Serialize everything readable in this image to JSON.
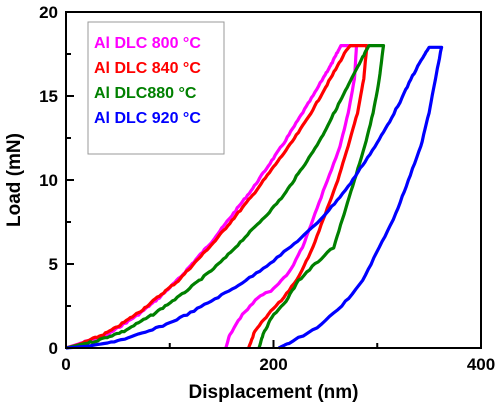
{
  "chart_data": {
    "type": "line",
    "xlabel": "Displacement (nm)",
    "ylabel": "Load (mN)",
    "xlim": [
      0,
      400
    ],
    "ylim": [
      0,
      20
    ],
    "x_ticks": [
      0,
      200,
      400
    ],
    "y_ticks": [
      0,
      5,
      10,
      15,
      20
    ],
    "grid": false,
    "legend_position": "top-left",
    "series": [
      {
        "name": "Al DLC 800 °C",
        "color": "#ff00ff",
        "points": [
          [
            0,
            0
          ],
          [
            10,
            0.2
          ],
          [
            20,
            0.4
          ],
          [
            30,
            0.6
          ],
          [
            40,
            0.8
          ],
          [
            50,
            1.2
          ],
          [
            60,
            1.6
          ],
          [
            70,
            2.0
          ],
          [
            80,
            2.5
          ],
          [
            90,
            3.0
          ],
          [
            100,
            3.6
          ],
          [
            110,
            4.2
          ],
          [
            120,
            4.9
          ],
          [
            130,
            5.6
          ],
          [
            140,
            6.3
          ],
          [
            150,
            7.1
          ],
          [
            160,
            7.9
          ],
          [
            170,
            8.7
          ],
          [
            180,
            9.5
          ],
          [
            190,
            10.4
          ],
          [
            200,
            11.3
          ],
          [
            210,
            12.2
          ],
          [
            220,
            13.2
          ],
          [
            230,
            14.2
          ],
          [
            240,
            15.2
          ],
          [
            250,
            16.3
          ],
          [
            255,
            16.8
          ],
          [
            260,
            17.4
          ],
          [
            265,
            18.0
          ],
          [
            280,
            18.0
          ],
          [
            278,
            16.0
          ],
          [
            272,
            14.0
          ],
          [
            264,
            12.0
          ],
          [
            252,
            10.0
          ],
          [
            240,
            8.0
          ],
          [
            228,
            6.0
          ],
          [
            215,
            4.5
          ],
          [
            200,
            3.5
          ],
          [
            185,
            3.0
          ],
          [
            170,
            2.0
          ],
          [
            158,
            0.8
          ],
          [
            154,
            0
          ]
        ]
      },
      {
        "name": "Al DLC 840 °C",
        "color": "#ff0000",
        "points": [
          [
            0,
            0
          ],
          [
            12,
            0.2
          ],
          [
            24,
            0.5
          ],
          [
            36,
            0.8
          ],
          [
            48,
            1.2
          ],
          [
            60,
            1.7
          ],
          [
            72,
            2.2
          ],
          [
            84,
            2.8
          ],
          [
            96,
            3.4
          ],
          [
            108,
            4.0
          ],
          [
            120,
            4.8
          ],
          [
            132,
            5.6
          ],
          [
            144,
            6.4
          ],
          [
            156,
            7.3
          ],
          [
            168,
            8.2
          ],
          [
            180,
            9.1
          ],
          [
            192,
            10.1
          ],
          [
            204,
            11.1
          ],
          [
            216,
            12.1
          ],
          [
            228,
            13.2
          ],
          [
            240,
            14.4
          ],
          [
            250,
            15.5
          ],
          [
            260,
            16.6
          ],
          [
            270,
            17.7
          ],
          [
            274,
            18.0
          ],
          [
            290,
            18.0
          ],
          [
            287,
            16.0
          ],
          [
            281,
            14.0
          ],
          [
            272,
            12.0
          ],
          [
            262,
            10.0
          ],
          [
            250,
            8.0
          ],
          [
            238,
            6.0
          ],
          [
            225,
            4.3
          ],
          [
            210,
            3.0
          ],
          [
            195,
            2.0
          ],
          [
            182,
            1.0
          ],
          [
            176,
            0
          ]
        ]
      },
      {
        "name": "Al DLC880 °C",
        "color": "#008000",
        "points": [
          [
            0,
            0
          ],
          [
            14,
            0.2
          ],
          [
            28,
            0.4
          ],
          [
            42,
            0.7
          ],
          [
            56,
            1.0
          ],
          [
            70,
            1.5
          ],
          [
            84,
            2.0
          ],
          [
            98,
            2.6
          ],
          [
            112,
            3.2
          ],
          [
            126,
            3.9
          ],
          [
            140,
            4.6
          ],
          [
            154,
            5.4
          ],
          [
            168,
            6.3
          ],
          [
            182,
            7.2
          ],
          [
            196,
            8.1
          ],
          [
            210,
            9.1
          ],
          [
            222,
            10.2
          ],
          [
            234,
            11.3
          ],
          [
            246,
            12.5
          ],
          [
            256,
            13.7
          ],
          [
            266,
            14.9
          ],
          [
            276,
            16.1
          ],
          [
            286,
            17.3
          ],
          [
            292,
            18.0
          ],
          [
            306,
            18.0
          ],
          [
            302,
            16.0
          ],
          [
            296,
            14.0
          ],
          [
            288,
            12.0
          ],
          [
            278,
            10.0
          ],
          [
            268,
            8.0
          ],
          [
            258,
            6.0
          ],
          [
            240,
            5.0
          ],
          [
            224,
            4.0
          ],
          [
            212,
            2.8
          ],
          [
            198,
            1.8
          ],
          [
            190,
            0.8
          ],
          [
            186,
            0
          ]
        ]
      },
      {
        "name": "Al DLC 920 °C",
        "color": "#0000ff",
        "points": [
          [
            0,
            0
          ],
          [
            20,
            0.1
          ],
          [
            40,
            0.3
          ],
          [
            60,
            0.6
          ],
          [
            80,
            1.0
          ],
          [
            100,
            1.5
          ],
          [
            120,
            2.1
          ],
          [
            140,
            2.8
          ],
          [
            160,
            3.5
          ],
          [
            180,
            4.3
          ],
          [
            200,
            5.2
          ],
          [
            220,
            6.2
          ],
          [
            240,
            7.3
          ],
          [
            256,
            8.4
          ],
          [
            272,
            9.6
          ],
          [
            286,
            10.9
          ],
          [
            300,
            12.2
          ],
          [
            312,
            13.5
          ],
          [
            324,
            14.9
          ],
          [
            334,
            16.2
          ],
          [
            344,
            17.3
          ],
          [
            350,
            17.9
          ],
          [
            362,
            17.9
          ],
          [
            356,
            16.0
          ],
          [
            350,
            14.0
          ],
          [
            342,
            12.0
          ],
          [
            330,
            10.0
          ],
          [
            318,
            8.0
          ],
          [
            302,
            6.0
          ],
          [
            286,
            4.0
          ],
          [
            266,
            2.5
          ],
          [
            242,
            1.2
          ],
          [
            215,
            0.3
          ],
          [
            205,
            0
          ]
        ]
      }
    ]
  }
}
